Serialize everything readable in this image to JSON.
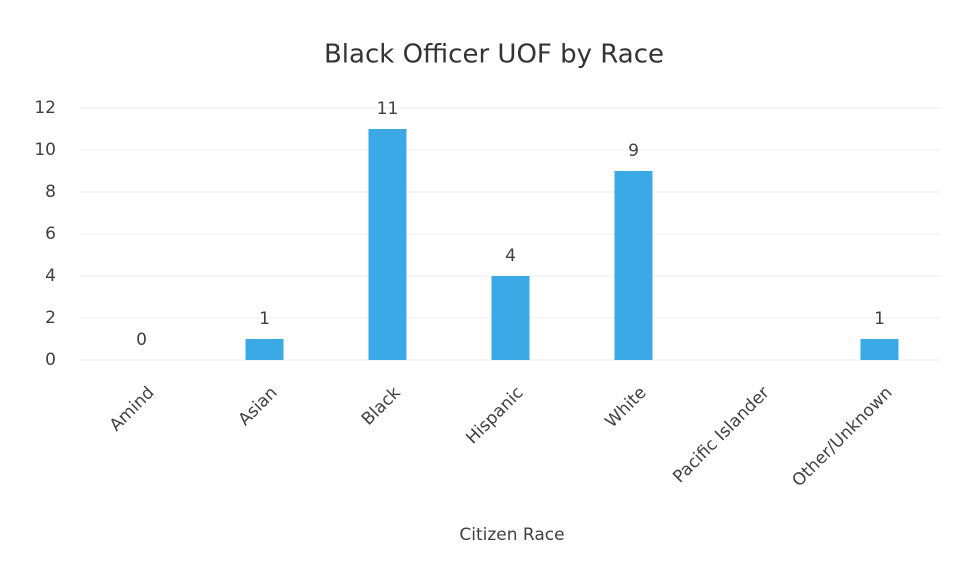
{
  "chart_data": {
    "type": "bar",
    "title": "Black Officer UOF by Race",
    "x_label": "Citizen Race",
    "categories": [
      "Amind",
      "Asian",
      "Black",
      "Hispanic",
      "White",
      "Pacific Islander",
      "Other/Unknown"
    ],
    "values": [
      0,
      1,
      11,
      4,
      9,
      null,
      1
    ],
    "color": "#3aa9e6",
    "ylim": [
      0,
      12
    ],
    "yticks": [
      0,
      2,
      4,
      6,
      8,
      10,
      12
    ],
    "grid": true
  }
}
